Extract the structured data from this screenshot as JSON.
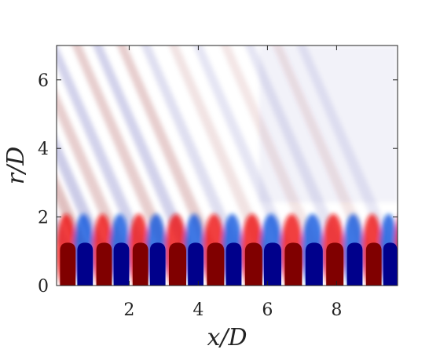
{
  "chart_data": {
    "type": "heatmap",
    "title": "",
    "xlabel": "x/D",
    "ylabel": "r/D",
    "xlim": [
      0,
      10
    ],
    "ylim": [
      0,
      7
    ],
    "x_ticks": [
      2,
      4,
      6,
      8
    ],
    "x_tick_labels": [
      "2",
      "4",
      "6",
      "8"
    ],
    "y_ticks": [
      0,
      2,
      4,
      6
    ],
    "y_tick_labels": [
      "0",
      "2",
      "4",
      "6"
    ],
    "grid": false,
    "colormap": {
      "negative": "#00008b",
      "zero": "#ffffff",
      "positive": "#800000"
    },
    "near_axis_alternating_columns": [
      {
        "x_start": 0.0,
        "x_end": 0.45,
        "sign": "positive"
      },
      {
        "x_start": 0.5,
        "x_end": 0.95,
        "sign": "negative"
      },
      {
        "x_start": 1.05,
        "x_end": 1.5,
        "sign": "positive"
      },
      {
        "x_start": 1.55,
        "x_end": 2.0,
        "sign": "negative"
      },
      {
        "x_start": 2.1,
        "x_end": 2.55,
        "sign": "positive"
      },
      {
        "x_start": 2.6,
        "x_end": 3.05,
        "sign": "negative"
      },
      {
        "x_start": 3.15,
        "x_end": 3.65,
        "sign": "positive"
      },
      {
        "x_start": 3.7,
        "x_end": 4.15,
        "sign": "negative"
      },
      {
        "x_start": 4.25,
        "x_end": 4.75,
        "sign": "positive"
      },
      {
        "x_start": 4.8,
        "x_end": 5.25,
        "sign": "negative"
      },
      {
        "x_start": 5.35,
        "x_end": 5.85,
        "sign": "positive"
      },
      {
        "x_start": 5.9,
        "x_end": 6.4,
        "sign": "negative"
      },
      {
        "x_start": 6.5,
        "x_end": 7.0,
        "sign": "positive"
      },
      {
        "x_start": 7.1,
        "x_end": 7.6,
        "sign": "negative"
      },
      {
        "x_start": 7.7,
        "x_end": 8.2,
        "sign": "positive"
      },
      {
        "x_start": 8.3,
        "x_end": 8.75,
        "sign": "negative"
      },
      {
        "x_start": 8.85,
        "x_end": 9.3,
        "sign": "positive"
      },
      {
        "x_start": 9.35,
        "x_end": 9.75,
        "sign": "negative"
      },
      {
        "x_start": 9.8,
        "x_end": 10.0,
        "sign": "positive"
      }
    ]
  }
}
